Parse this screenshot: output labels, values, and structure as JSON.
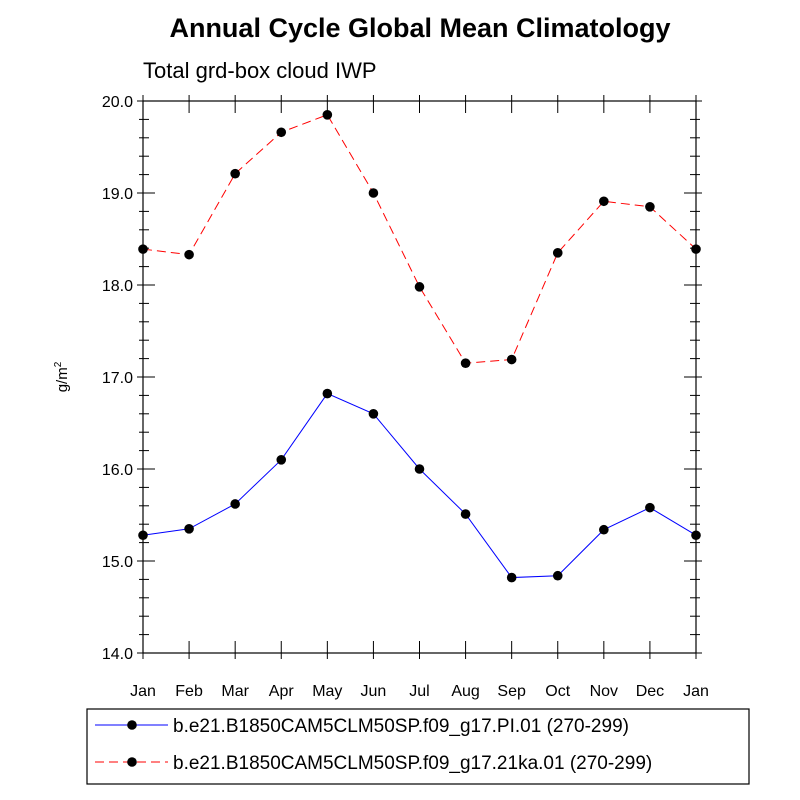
{
  "chart_data": {
    "type": "line",
    "title": "Annual Cycle Global Mean Climatology",
    "subtitle": "Total grd-box cloud IWP",
    "ylabel_base": "g/m",
    "ylabel_sup": "2",
    "categories": [
      "Jan",
      "Feb",
      "Mar",
      "Apr",
      "May",
      "Jun",
      "Jul",
      "Aug",
      "Sep",
      "Oct",
      "Nov",
      "Dec",
      "Jan"
    ],
    "ylim": [
      14.0,
      20.0
    ],
    "yticks": [
      "14.0",
      "15.0",
      "16.0",
      "17.0",
      "18.0",
      "19.0",
      "20.0"
    ],
    "series": [
      {
        "name": "b.e21.B1850CAM5CLM50SP.f09_g17.PI.01 (270-299)",
        "color": "#0000ff",
        "dash": "solid",
        "values": [
          15.28,
          15.35,
          15.62,
          16.1,
          16.82,
          16.6,
          16.0,
          15.51,
          14.82,
          14.84,
          15.34,
          15.58,
          15.28
        ]
      },
      {
        "name": "b.e21.B1850CAM5CLM50SP.f09_g17.21ka.01 (270-299)",
        "color": "#ff0000",
        "dash": "dashed",
        "values": [
          18.39,
          18.33,
          19.21,
          19.66,
          19.85,
          19.0,
          17.98,
          17.15,
          17.19,
          18.35,
          18.91,
          18.85,
          18.39
        ]
      }
    ]
  }
}
